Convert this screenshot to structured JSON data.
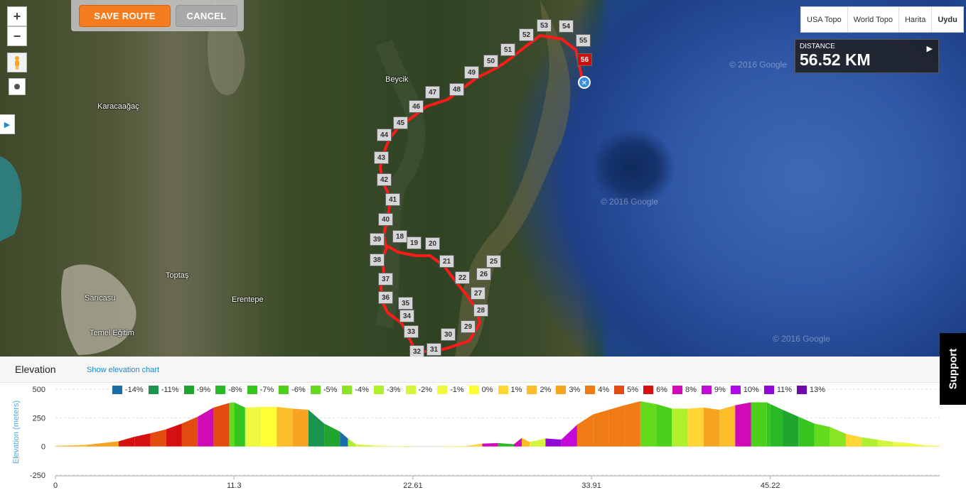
{
  "toolbar": {
    "save_label": "SAVE ROUTE",
    "cancel_label": "CANCEL"
  },
  "map_controls": {
    "zoom_in": "+",
    "zoom_out": "−"
  },
  "layers": [
    "USA Topo",
    "World Topo",
    "Harita",
    "Uydu"
  ],
  "distance": {
    "label": "DISTANCE",
    "value": "56.52 KM"
  },
  "map_labels": [
    "Beycik",
    "Karacaağaç",
    "Toptaş",
    "Sarıcasu",
    "Erentepe",
    "Temel Eğitim"
  ],
  "copyright": "© 2016 Google",
  "route_markers": [
    "18",
    "19",
    "20",
    "21",
    "22",
    "25",
    "26",
    "27",
    "28",
    "29",
    "30",
    "31",
    "32",
    "33",
    "34",
    "35",
    "36",
    "37",
    "38",
    "39",
    "40",
    "41",
    "42",
    "43",
    "44",
    "45",
    "46",
    "47",
    "48",
    "49",
    "50",
    "51",
    "52",
    "53",
    "54",
    "55",
    "56"
  ],
  "support_label": "Support",
  "elevation": {
    "title": "Elevation",
    "show_chart_link": "Show elevation chart"
  },
  "chart_data": {
    "type": "area",
    "ylabel": "Elevation (meters)",
    "yticks": [
      "500",
      "250",
      "0",
      "-250"
    ],
    "xticks": [
      "0",
      "11.3",
      "22.61",
      "33.91",
      "45.22"
    ],
    "ylim": [
      -250,
      500
    ],
    "xlim": [
      0,
      56.52
    ],
    "legend": [
      {
        "label": "-14%",
        "color": "#1a6ea8"
      },
      {
        "label": "-11%",
        "color": "#1a9450"
      },
      {
        "label": "-9%",
        "color": "#1fa52e"
      },
      {
        "label": "-8%",
        "color": "#29b826"
      },
      {
        "label": "-7%",
        "color": "#36c41f"
      },
      {
        "label": "-6%",
        "color": "#4bd01c"
      },
      {
        "label": "-5%",
        "color": "#63da1e"
      },
      {
        "label": "-4%",
        "color": "#8ae424"
      },
      {
        "label": "-3%",
        "color": "#b0ef2e"
      },
      {
        "label": "-2%",
        "color": "#d3f53a"
      },
      {
        "label": "-1%",
        "color": "#eefa42"
      },
      {
        "label": "0%",
        "color": "#ffff33"
      },
      {
        "label": "1%",
        "color": "#ffd633"
      },
      {
        "label": "2%",
        "color": "#fbbd2a"
      },
      {
        "label": "3%",
        "color": "#f8a322"
      },
      {
        "label": "4%",
        "color": "#f07b14"
      },
      {
        "label": "5%",
        "color": "#e44b10"
      },
      {
        "label": "6%",
        "color": "#d41010"
      },
      {
        "label": "8%",
        "color": "#d10ab8"
      },
      {
        "label": "9%",
        "color": "#c40ad8"
      },
      {
        "label": "10%",
        "color": "#b00ae6"
      },
      {
        "label": "11%",
        "color": "#9408d6"
      },
      {
        "label": "13%",
        "color": "#6d0aa8"
      }
    ],
    "series": [
      {
        "x": [
          0,
          2,
          4,
          5,
          6,
          7,
          8,
          9,
          10,
          11,
          11.3,
          12,
          13,
          14,
          15,
          16,
          17,
          18,
          18.5,
          19,
          20,
          21,
          22,
          23,
          24,
          25,
          26,
          27,
          28,
          29,
          29.5,
          30,
          31,
          32,
          33,
          34,
          35,
          36,
          37,
          38,
          39,
          40,
          41,
          42,
          43,
          44,
          45,
          45.22,
          46,
          47,
          48,
          49,
          50,
          51,
          52,
          53,
          54,
          55,
          56,
          56.52
        ],
        "y": [
          5,
          15,
          45,
          85,
          115,
          150,
          200,
          260,
          340,
          380,
          385,
          340,
          345,
          345,
          330,
          320,
          200,
          130,
          70,
          20,
          10,
          5,
          -5,
          0,
          0,
          3,
          5,
          25,
          30,
          20,
          75,
          40,
          70,
          60,
          190,
          280,
          320,
          360,
          395,
          370,
          330,
          330,
          340,
          320,
          360,
          385,
          385,
          370,
          320,
          260,
          200,
          170,
          110,
          80,
          60,
          40,
          30,
          10,
          5,
          3
        ],
        "colors": [
          "#fbbd2a",
          "#f8a322",
          "#d41010",
          "#d41010",
          "#e44b10",
          "#d41010",
          "#e44b10",
          "#d10ab8",
          "#e44b10",
          "#63da1e",
          "#36c41f",
          "#eefa42",
          "#ffff33",
          "#fbbd2a",
          "#f8a322",
          "#1a9450",
          "#1fa52e",
          "#1a6ea8",
          "#b0ef2e",
          "#d3f53a",
          "#eefa42",
          "#ffff33",
          "#d3f53a",
          "#ffd633",
          "#ffff33",
          "#ffff33",
          "#ffd633",
          "#d10ab8",
          "#29b826",
          "#d10ab8",
          "#fbbd2a",
          "#d3f53a",
          "#9408d6",
          "#c40ad8",
          "#f07b14",
          "#f07b14",
          "#f07b14",
          "#f07b14",
          "#63da1e",
          "#4bd01c",
          "#b0ef2e",
          "#ffd633",
          "#f8a322",
          "#fbbd2a",
          "#d10ab8",
          "#4bd01c",
          "#36c41f",
          "#29b826",
          "#1fa52e",
          "#36c41f",
          "#63da1e",
          "#8ae424",
          "#ffd633",
          "#b0ef2e",
          "#d3f53a",
          "#eefa42",
          "#eefa42",
          "#ffff33",
          "#ffff33"
        ]
      }
    ]
  }
}
